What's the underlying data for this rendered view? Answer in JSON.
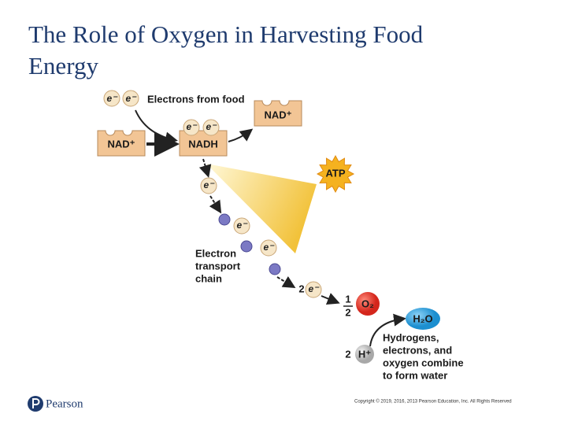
{
  "header": {
    "title": "The Role of Oxygen in Harvesting Food Energy"
  },
  "diagram": {
    "food_electrons": [
      "e⁻",
      "e⁻"
    ],
    "food_label": "Electrons from food",
    "nad_left": "NAD⁺",
    "nadh": "NADH",
    "nadh_electrons": [
      "e⁻",
      "e⁻"
    ],
    "nad_right": "NAD⁺",
    "atp": "ATP",
    "chain_electrons": [
      "e⁻",
      "e⁻",
      "e⁻"
    ],
    "chain_label": [
      "Electron",
      "transport",
      "chain"
    ],
    "final_count": "2",
    "final_electron": "e⁻",
    "oxygen_fraction": {
      "numerator": "1",
      "denominator": "2"
    },
    "oxygen": "O₂",
    "water": "H₂O",
    "hydrogen_count": "2",
    "hydrogen": "H⁺",
    "caption": [
      "Hydrogens,",
      "electrons, and",
      "oxygen combine",
      "to form water"
    ]
  },
  "footer": {
    "logo": "Pearson",
    "copyright": "Copyright © 2019, 2016, 2013 Pearson Education, Inc. All Rights Reserved"
  }
}
